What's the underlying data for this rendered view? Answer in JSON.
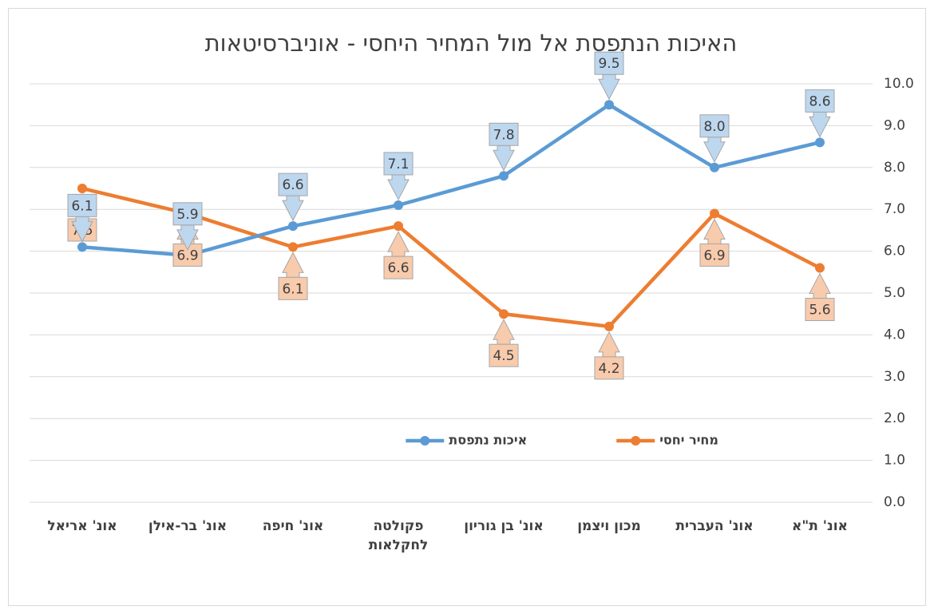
{
  "chart_data": {
    "type": "line",
    "title": "האיכות הנתפסת אל מול המחיר היחסי - אוניברסיטאות",
    "categories": [
      "אונ' אריאל",
      "אונ' בר-אילן",
      "אונ' חיפה",
      "פקולטה לחקלאות",
      "אונ' בן גוריון",
      "מכון ויצמן",
      "אונ' העברית",
      "אונ' ת\"א"
    ],
    "series": [
      {
        "name": "מחיר יחסי",
        "color": "#ed7d31",
        "label_fill": "#f8cbad",
        "label_side": "below",
        "values": [
          7.5,
          6.9,
          6.1,
          6.6,
          4.5,
          4.2,
          6.9,
          5.6
        ],
        "value_labels": [
          "7.5",
          "6.9",
          "6.1",
          "6.6",
          "4.5",
          "4.2",
          "6.9",
          "5.6"
        ]
      },
      {
        "name": "איכות נתפסת",
        "color": "#5b9bd5",
        "label_fill": "#bdd7ee",
        "label_side": "above",
        "values": [
          6.1,
          5.9,
          6.6,
          7.1,
          7.8,
          9.5,
          8.0,
          8.6
        ],
        "value_labels": [
          "6.1",
          "5.9",
          "6.6",
          "7.1",
          "7.8",
          "9.5",
          "8.0",
          "8.6"
        ]
      }
    ],
    "ylim": [
      0,
      10
    ],
    "yticks": [
      {
        "value": 0,
        "label": "0.0"
      },
      {
        "value": 1,
        "label": "1.0"
      },
      {
        "value": 2,
        "label": "2.0"
      },
      {
        "value": 3,
        "label": "3.0"
      },
      {
        "value": 4,
        "label": "4.0"
      },
      {
        "value": 5,
        "label": "5.0"
      },
      {
        "value": 6,
        "label": "6.0"
      },
      {
        "value": 7,
        "label": "7.0"
      },
      {
        "value": 8,
        "label": "8.0"
      },
      {
        "value": 9,
        "label": "9.0"
      },
      {
        "value": 10,
        "label": "10.0"
      }
    ],
    "y_axis_side": "right",
    "grid": true,
    "legend": "inside-bottom"
  }
}
